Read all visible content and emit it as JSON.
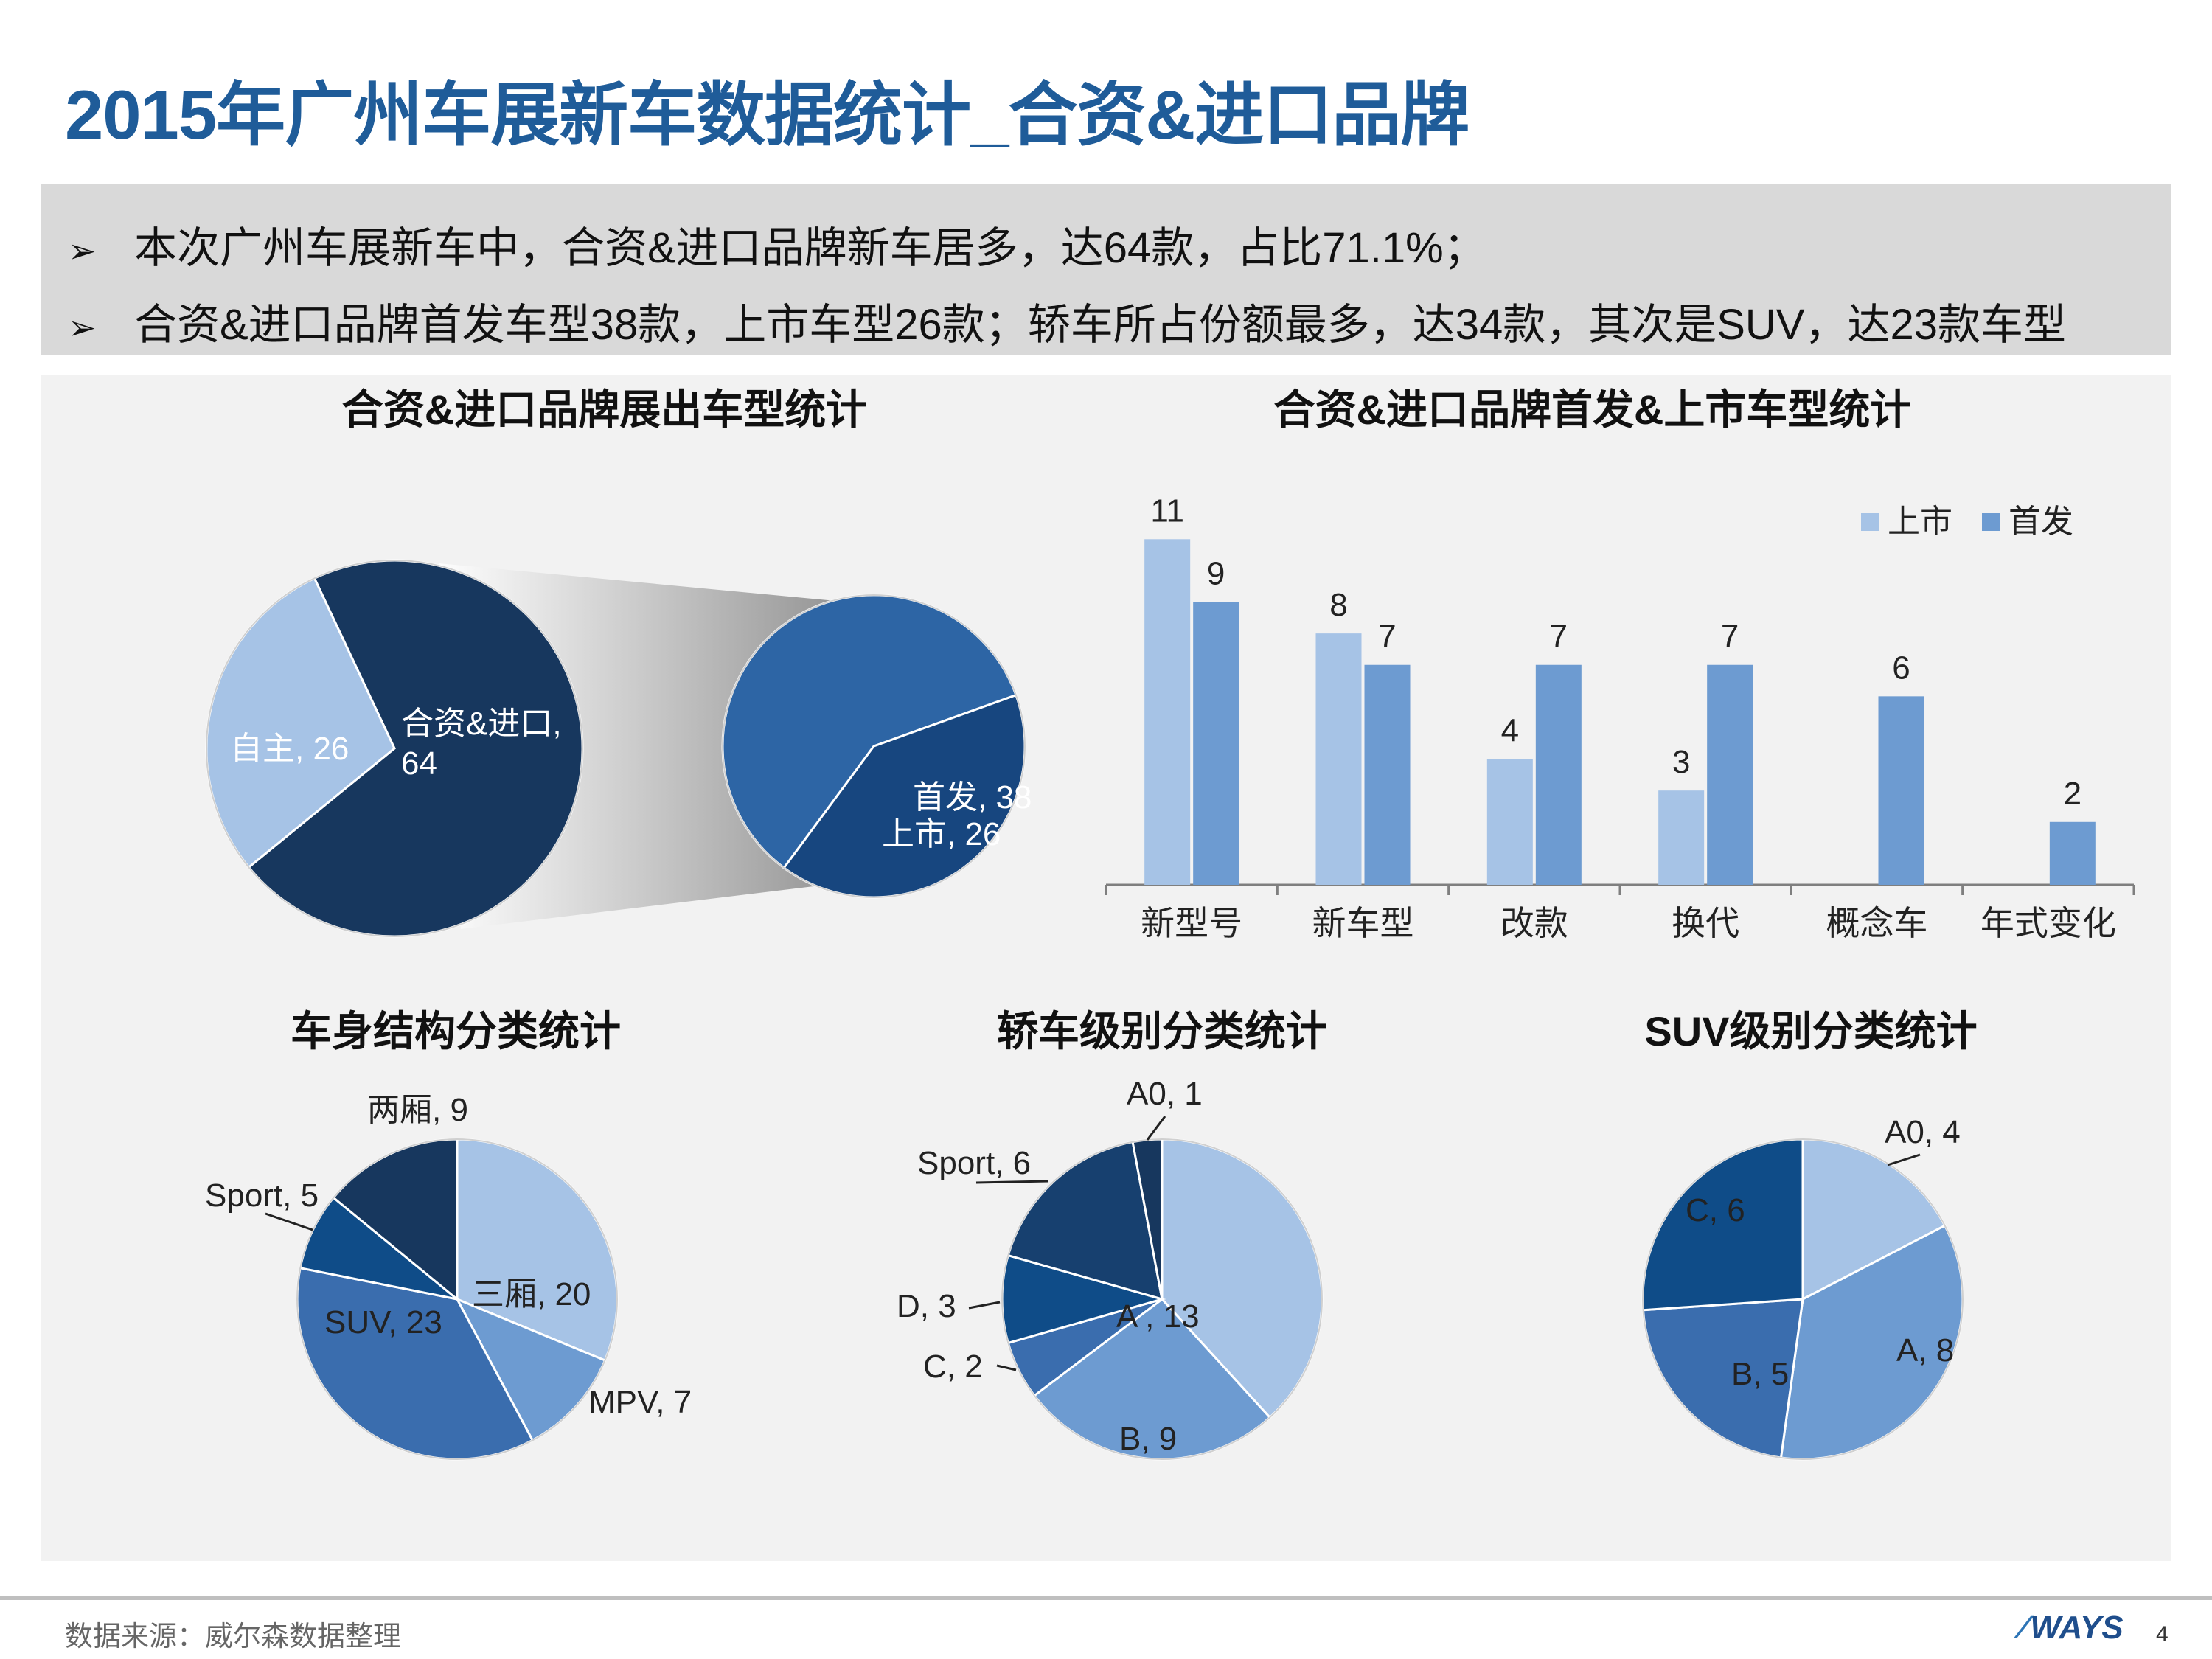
{
  "title": "2015年广州车展新车数据统计_合资&进口品牌",
  "summary": {
    "bullet_icon": "arrow-bullet-icon",
    "lines": [
      "本次广州车展新车中，合资&进口品牌新车居多，达64款，占比71.1%；",
      "合资&进口品牌首发车型38款，上市车型26款；轿车所占份额最多，达34款，其次是SUV，达23款车型"
    ]
  },
  "colors": {
    "title": "#1F5C99",
    "dark": "#17375E",
    "mid": "#2E5F9E",
    "mid2": "#3A6DAE",
    "light": "#A6C3E6",
    "lighter": "#6D9BD1",
    "panel": "#F2F2F2"
  },
  "chart_data": [
    {
      "type": "pie",
      "title": "合资&进口品牌展出车型统计",
      "slices": [
        {
          "label": "自主",
          "value": 26,
          "text": "自主, 26"
        },
        {
          "label": "合资&进口",
          "value": 64,
          "text_lines": [
            "合资&进口,",
            "64"
          ]
        }
      ],
      "sub_pie": {
        "slices": [
          {
            "label": "首发",
            "value": 38,
            "text": "首发, 38"
          },
          {
            "label": "上市",
            "value": 26,
            "text": "上市, 26"
          }
        ]
      }
    },
    {
      "type": "bar",
      "title": "合资&进口品牌首发&上市车型统计",
      "categories": [
        "新型号",
        "新车型",
        "改款",
        "换代",
        "概念车",
        "年式变化"
      ],
      "series": [
        {
          "name": "上市",
          "values": [
            11,
            8,
            4,
            3,
            0,
            0
          ]
        },
        {
          "name": "首发",
          "values": [
            9,
            7,
            7,
            7,
            6,
            2
          ]
        }
      ],
      "legend": "top-right",
      "ylim": [
        0,
        11.5
      ]
    },
    {
      "type": "pie",
      "title": "车身结构分类统计",
      "slices": [
        {
          "label": "三厢",
          "value": 20,
          "text": "三厢, 20"
        },
        {
          "label": "MPV",
          "value": 7,
          "text": "MPV, 7"
        },
        {
          "label": "SUV",
          "value": 23,
          "text": "SUV, 23"
        },
        {
          "label": "Sport",
          "value": 5,
          "text": "Sport, 5"
        },
        {
          "label": "两厢",
          "value": 9,
          "text": "两厢, 9"
        }
      ]
    },
    {
      "type": "pie",
      "title": "轿车级别分类统计",
      "slices": [
        {
          "label": "A",
          "value": 13,
          "text": "A , 13"
        },
        {
          "label": "B",
          "value": 9,
          "text": "B, 9"
        },
        {
          "label": "C",
          "value": 2,
          "text": "C, 2"
        },
        {
          "label": "D",
          "value": 3,
          "text": "D, 3"
        },
        {
          "label": "Sport",
          "value": 6,
          "text": "Sport, 6"
        },
        {
          "label": "A0",
          "value": 1,
          "text": "A0, 1"
        }
      ]
    },
    {
      "type": "pie",
      "title": "SUV级别分类统计",
      "slices": [
        {
          "label": "A0",
          "value": 4,
          "text": "A0, 4"
        },
        {
          "label": "A",
          "value": 8,
          "text": "A, 8"
        },
        {
          "label": "B",
          "value": 5,
          "text": "B, 5"
        },
        {
          "label": "C",
          "value": 6,
          "text": "C, 6"
        }
      ]
    }
  ],
  "footer": {
    "source": "数据来源：威尔森数据整理",
    "logo_text": "WAYS",
    "logo_icon": "ways-swoosh-icon",
    "page_number": "4"
  }
}
